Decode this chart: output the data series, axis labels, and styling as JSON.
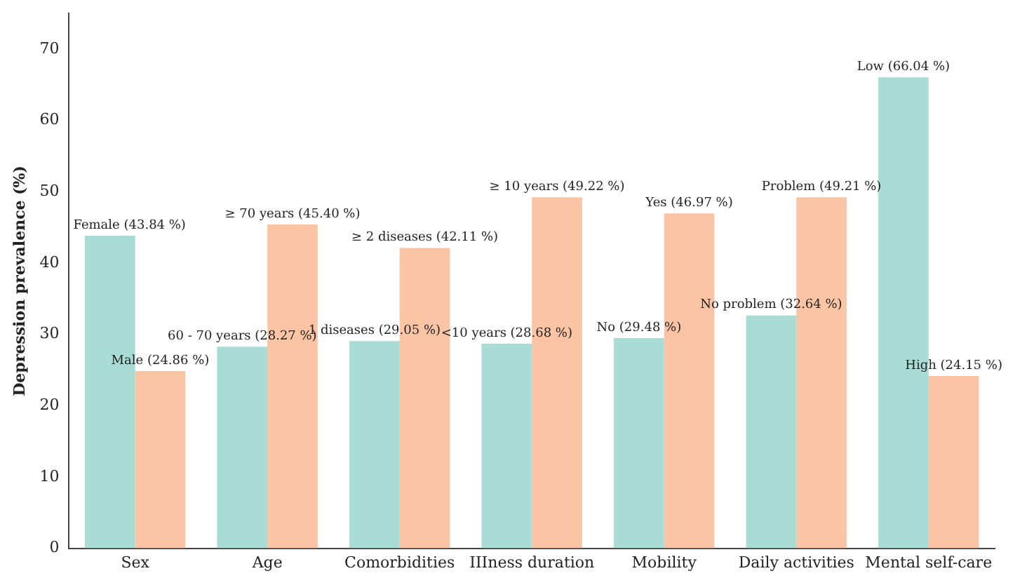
{
  "chart_data": {
    "type": "bar",
    "ylabel": "Depression prevalence (%)",
    "categories": [
      "Sex",
      "Age",
      "Comorbidities",
      "IIIness duration",
      "Mobility",
      "Daily activities",
      "Mental self-care"
    ],
    "series": [
      {
        "color": "#a8dcd5",
        "values": [
          43.84,
          28.27,
          29.05,
          28.68,
          29.48,
          32.64,
          66.04
        ],
        "value_labels": [
          "Female (43.84 %)",
          "60 - 70 years (28.27 %)",
          "1 diseases (29.05 %)",
          "<10 years (28.68 %)",
          "No (29.48 %)",
          "No problem (32.64 %)",
          "Low (66.04 %)"
        ]
      },
      {
        "color": "#fbc4a4",
        "values": [
          24.86,
          45.4,
          42.11,
          49.22,
          46.97,
          49.21,
          24.15
        ],
        "value_labels": [
          "Male (24.86 %)",
          "≥ 70 years (45.40 %)",
          "≥ 2 diseases (42.11 %)",
          "≥ 10 years (49.22 %)",
          "Yes (46.97 %)",
          "Problem (49.21 %)",
          "High (24.15 %)"
        ]
      }
    ],
    "ylim": [
      0,
      75
    ],
    "yticks": [
      0,
      10,
      20,
      30,
      40,
      50,
      60,
      70
    ],
    "grid": false
  }
}
